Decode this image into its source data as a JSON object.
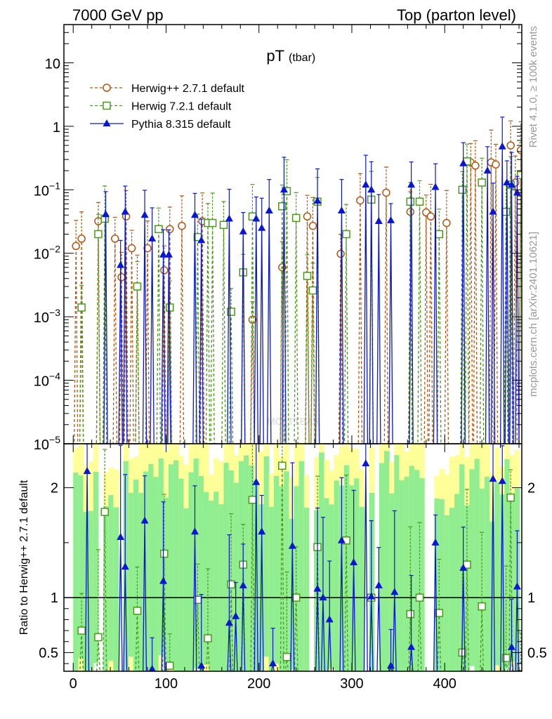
{
  "header": {
    "energy_label": "7000 GeV pp",
    "process_label": "Top (parton level)"
  },
  "side_text": {
    "rivet": "Rivet 4.1.0, ≥ 100k events",
    "mcplots": "mcplots.cern.ch [arXiv:2401.10621]"
  },
  "colors": {
    "herwig_pp": "#b5540f",
    "herwig_7": "#4a9a1a",
    "pythia": "#0a16d6",
    "band_green": "#90ee90",
    "band_yellow": "#ffff99"
  },
  "chart_data": [
    {
      "type": "line",
      "title": "pT",
      "title_sub": "(tbar)",
      "watermark": "MC_TTBAR",
      "xlim": [
        -10,
        483
      ],
      "ylim": [
        1e-05,
        40
      ],
      "yscale": "log",
      "ytick_labels": [
        "10",
        "1",
        "10−1",
        "10−2",
        "10−3",
        "10−4",
        "10−5"
      ],
      "ytick_values": [
        10,
        1,
        0.1,
        0.01,
        0.001,
        0.0001,
        1e-05
      ],
      "legend_position": "top-left",
      "series": [
        {
          "name": "Herwig++ 2.7.1 default",
          "marker": "open-circle",
          "linestyle": "dashed",
          "points": [
            [
              3,
              0.013
            ],
            [
              9,
              0.017
            ],
            [
              27,
              0.032
            ],
            [
              45,
              0.017
            ],
            [
              52,
              0.0042
            ],
            [
              57,
              0.038
            ],
            [
              63,
              0.012
            ],
            [
              69,
              0.003
            ],
            [
              80,
              0.012
            ],
            [
              98,
              0.0054
            ],
            [
              104,
              0.024
            ],
            [
              117,
              0.027
            ],
            [
              139,
              0.032
            ],
            [
              193,
              0.0009
            ],
            [
              225,
              0.006
            ],
            [
              252,
              0.038
            ],
            [
              258,
              0.027
            ],
            [
              288,
              0.0098
            ],
            [
              309,
              0.068
            ],
            [
              337,
              0.09
            ],
            [
              363,
              0.045
            ],
            [
              380,
              0.044
            ],
            [
              385,
              0.038
            ],
            [
              402,
              0.03
            ],
            [
              428,
              0.27
            ],
            [
              433,
              0.24
            ],
            [
              450,
              0.27
            ],
            [
              455,
              0.25
            ],
            [
              471,
              0.5
            ],
            [
              476,
              0.13
            ],
            [
              482,
              0.42
            ]
          ]
        },
        {
          "name": "Herwig 7.2.1 default",
          "marker": "open-square",
          "linestyle": "dashed",
          "points": [
            [
              9,
              0.0014
            ],
            [
              27,
              0.02
            ],
            [
              34,
              0.035
            ],
            [
              69,
              0.003
            ],
            [
              92,
              0.024
            ],
            [
              104,
              0.0014
            ],
            [
              134,
              0.018
            ],
            [
              145,
              0.03
            ],
            [
              150,
              0.03
            ],
            [
              162,
              0.028
            ],
            [
              170,
              0.0012
            ],
            [
              183,
              0.005
            ],
            [
              193,
              0.038
            ],
            [
              225,
              0.055
            ],
            [
              230,
              0.095
            ],
            [
              240,
              0.036
            ],
            [
              252,
              0.0044
            ],
            [
              258,
              0.0026
            ],
            [
              263,
              0.065
            ],
            [
              294,
              0.02
            ],
            [
              321,
              0.07
            ],
            [
              363,
              0.065
            ],
            [
              373,
              0.065
            ],
            [
              394,
              0.02
            ],
            [
              419,
              0.1
            ],
            [
              424,
              0.28
            ],
            [
              440,
              0.13
            ],
            [
              466,
              0.045
            ],
            [
              471,
              0.12
            ],
            [
              482,
              0.17
            ]
          ]
        },
        {
          "name": "Pythia 8.315 default",
          "marker": "filled-triangle",
          "linestyle": "solid",
          "points": [
            [
              35,
              0.041
            ],
            [
              51,
              0.0065
            ],
            [
              56,
              0.045
            ],
            [
              77,
              0.04
            ],
            [
              85,
              0.017
            ],
            [
              97,
              0.0095
            ],
            [
              103,
              0.0095
            ],
            [
              131,
              0.04
            ],
            [
              138,
              0.016
            ],
            [
              168,
              0.035
            ],
            [
              183,
              0.022
            ],
            [
              197,
              0.035
            ],
            [
              203,
              0.025
            ],
            [
              211,
              0.047
            ],
            [
              227,
              0.1
            ],
            [
              263,
              0.067
            ],
            [
              289,
              0.047
            ],
            [
              315,
              0.12
            ],
            [
              321,
              0.1
            ],
            [
              329,
              0.032
            ],
            [
              342,
              0.033
            ],
            [
              364,
              0.12
            ],
            [
              390,
              0.11
            ],
            [
              420,
              0.26
            ],
            [
              446,
              0.2
            ],
            [
              452,
              0.045
            ],
            [
              462,
              0.48
            ],
            [
              467,
              0.13
            ],
            [
              472,
              0.12
            ],
            [
              478,
              0.09
            ]
          ]
        }
      ]
    },
    {
      "type": "line",
      "ylabel": "Ratio to Herwig++ 2.7.1 default",
      "xlim": [
        -10,
        483
      ],
      "ylim": [
        0.33,
        2.4
      ],
      "xtick_labels": [
        "0",
        "100",
        "200",
        "300",
        "400"
      ],
      "xtick_values": [
        0,
        100,
        200,
        300,
        400
      ],
      "ytick_labels": [
        "0.5",
        "1",
        "2"
      ],
      "ytick_values": [
        0.5,
        1,
        2
      ],
      "reference_line": 1,
      "series": [
        {
          "name": "Herwig 7.2.1 ratio",
          "marker": "open-square",
          "linestyle": "dashed",
          "points": [
            [
              9,
              0.7
            ],
            [
              27,
              0.64
            ],
            [
              34,
              1.78
            ],
            [
              69,
              0.88
            ],
            [
              98,
              1.4
            ],
            [
              104,
              0.38
            ],
            [
              134,
              0.98
            ],
            [
              145,
              0.63
            ],
            [
              170,
              1.12
            ],
            [
              183,
              1.3
            ],
            [
              193,
              1.89
            ],
            [
              225,
              2.2
            ],
            [
              230,
              0.46
            ],
            [
              240,
              1.0
            ],
            [
              263,
              1.46
            ],
            [
              294,
              1.52
            ],
            [
              321,
              1.0
            ],
            [
              363,
              0.85
            ],
            [
              373,
              1.0
            ],
            [
              394,
              0.86
            ],
            [
              419,
              0.5
            ],
            [
              424,
              1.3
            ],
            [
              440,
              0.92
            ],
            [
              466,
              0.45
            ],
            [
              471,
              1.91
            ],
            [
              482,
              0.37
            ]
          ]
        },
        {
          "name": "Pythia 8.315 ratio",
          "marker": "filled-triangle",
          "linestyle": "solid",
          "points": [
            [
              15,
              2.15
            ],
            [
              51,
              1.55
            ],
            [
              56,
              1.28
            ],
            [
              77,
              1.7
            ],
            [
              85,
              0.35
            ],
            [
              97,
              1.15
            ],
            [
              131,
              1.6
            ],
            [
              138,
              0.38
            ],
            [
              168,
              0.77
            ],
            [
              175,
              0.83
            ],
            [
              183,
              1.11
            ],
            [
              197,
              2.05
            ],
            [
              203,
              1.6
            ],
            [
              215,
              0.4
            ],
            [
              236,
              1.47
            ],
            [
              263,
              1.08
            ],
            [
              269,
              1.0
            ],
            [
              276,
              0.8
            ],
            [
              289,
              1.52
            ],
            [
              302,
              1.32
            ],
            [
              315,
              2.22
            ],
            [
              321,
              1.01
            ],
            [
              329,
              1.11
            ],
            [
              342,
              0.38
            ],
            [
              346,
              1.05
            ],
            [
              364,
              0.55
            ],
            [
              390,
              1.5
            ],
            [
              420,
              1.27
            ],
            [
              452,
              2.08
            ],
            [
              462,
              2.06
            ],
            [
              472,
              0.55
            ],
            [
              478,
              1.1
            ]
          ]
        }
      ]
    }
  ]
}
